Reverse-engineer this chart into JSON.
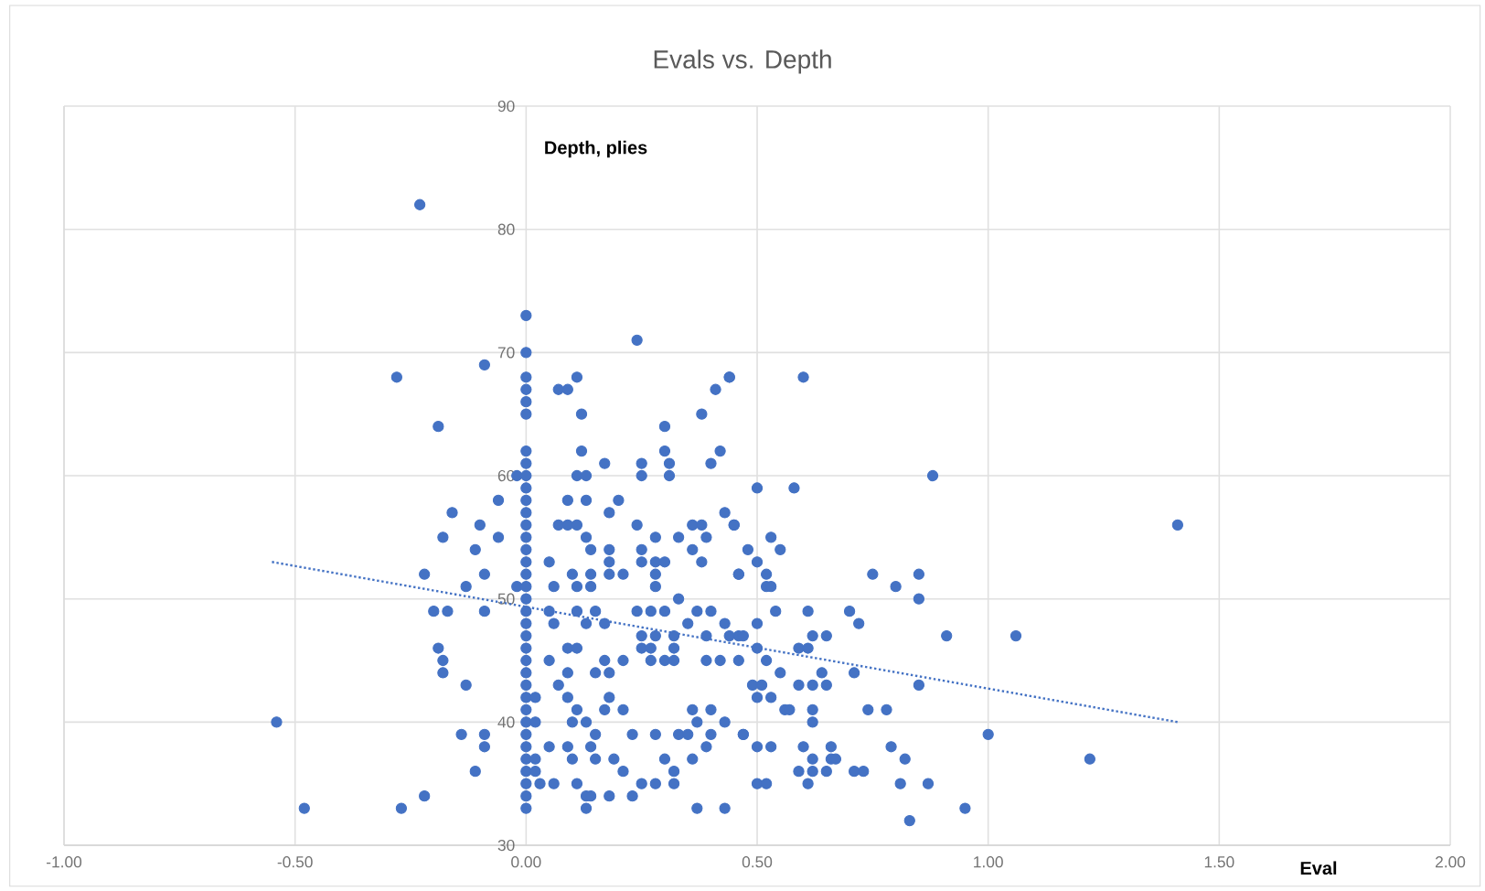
{
  "chart_data": {
    "type": "scatter",
    "title": "Evals vs. Depth",
    "xlabel": "Eval",
    "ylabel": "Depth, plies",
    "xlim": [
      -1,
      2
    ],
    "ylim": [
      30,
      90
    ],
    "xticks": [
      {
        "value": -1,
        "label": "-1.00"
      },
      {
        "value": -0.5,
        "label": "-0.50"
      },
      {
        "value": 0,
        "label": "0.00"
      },
      {
        "value": 0.5,
        "label": "0.50"
      },
      {
        "value": 1,
        "label": "1.00"
      },
      {
        "value": 1.5,
        "label": "1.50"
      },
      {
        "value": 2,
        "label": "2.00"
      }
    ],
    "yticks": [
      30,
      40,
      50,
      60,
      70,
      80,
      90
    ],
    "grid": true,
    "marker": "circle",
    "series": [
      {
        "color": "#4472c4",
        "x": [
          -0.23,
          -0.28,
          -0.09,
          -0.19,
          -0.16,
          -0.06,
          -0.1,
          -0.18,
          -0.06,
          -0.11,
          -0.22,
          -0.09,
          -0.13,
          -0.02,
          -0.2,
          -0.17,
          -0.09,
          -0.19,
          -0.18,
          -0.18,
          -0.13,
          -0.54,
          -0.14,
          -0.09,
          -0.09,
          -0.11,
          -0.22,
          -0.48,
          -0.27,
          -0.02,
          0,
          0,
          0,
          0,
          0,
          0,
          0,
          0,
          0,
          0,
          0,
          0,
          0,
          0,
          0,
          0,
          0,
          0,
          0,
          0,
          0,
          0,
          0,
          0,
          0,
          0,
          0,
          0,
          0,
          0,
          0,
          0,
          0,
          0,
          0,
          0,
          0.24,
          0.07,
          0.09,
          0.11,
          0.12,
          0.3,
          0.38,
          0.44,
          0.41,
          0.12,
          0.11,
          0.13,
          0.17,
          0.25,
          0.25,
          0.3,
          0.31,
          0.31,
          0.42,
          0.4,
          0.09,
          0.13,
          0.2,
          0.18,
          0.07,
          0.09,
          0.11,
          0.13,
          0.14,
          0.24,
          0.28,
          0.33,
          0.36,
          0.38,
          0.39,
          0.36,
          0.43,
          0.45,
          0.05,
          0.18,
          0.18,
          0.21,
          0.18,
          0.25,
          0.25,
          0.28,
          0.3,
          0.28,
          0.28,
          0.46,
          0.38,
          0.1,
          0.14,
          0.11,
          0.14,
          0.06,
          0.05,
          0.06,
          0.11,
          0.15,
          0.13,
          0.17,
          0.24,
          0.27,
          0.3,
          0.33,
          0.35,
          0.37,
          0.4,
          0.43,
          0.25,
          0.28,
          0.32,
          0.39,
          0.46,
          0.25,
          0.27,
          0.32,
          0.27,
          0.3,
          0.32,
          0.39,
          0.42,
          0.05,
          0.09,
          0.11,
          0.09,
          0.07,
          0.15,
          0.17,
          0.18,
          0.21,
          0.02,
          0.09,
          0.11,
          0.18,
          0.21,
          0.17,
          0.36,
          0.4,
          0.43,
          0.02,
          0.1,
          0.13,
          0.15,
          0.23,
          0.28,
          0.33,
          0.35,
          0.37,
          0.4,
          0.47,
          0.05,
          0.09,
          0.14,
          0.1,
          0.15,
          0.19,
          0.21,
          0.3,
          0.32,
          0.36,
          0.39,
          0.02,
          0.02,
          0.03,
          0.06,
          0.11,
          0.13,
          0.14,
          0.18,
          0.23,
          0.25,
          0.28,
          0.32,
          0.13,
          0.37,
          0.43,
          0.44,
          0.6,
          0.5,
          0.58,
          0.88,
          0.45,
          0.53,
          0.55,
          0.48,
          0.46,
          0.5,
          0.52,
          0.52,
          0.53,
          0.75,
          0.8,
          0.85,
          0.85,
          0.54,
          0.61,
          0.7,
          0.72,
          0.5,
          0.44,
          0.47,
          0.62,
          0.65,
          0.91,
          1.06,
          0.5,
          0.52,
          0.46,
          0.59,
          0.61,
          0.55,
          0.64,
          0.71,
          0.85,
          0.49,
          0.51,
          0.5,
          0.53,
          0.59,
          0.62,
          0.65,
          0.56,
          0.57,
          0.62,
          0.62,
          0.74,
          0.78,
          0.47,
          0.5,
          0.53,
          0.6,
          0.66,
          0.79,
          1.0,
          0.62,
          0.66,
          0.67,
          0.82,
          0.59,
          0.62,
          0.71,
          0.73,
          0.65,
          0.5,
          0.52,
          0.61,
          0.81,
          0.87,
          0.83,
          0.95,
          1.41,
          1.22
        ],
        "values": [
          82,
          68,
          69,
          64,
          57,
          58,
          56,
          55,
          55,
          54,
          52,
          52,
          51,
          51,
          49,
          49,
          49,
          46,
          45,
          44,
          43,
          40,
          39,
          39,
          38,
          36,
          34,
          33,
          33,
          60,
          73,
          70,
          68,
          67,
          66,
          65,
          62,
          61,
          60,
          59,
          58,
          57,
          56,
          55,
          54,
          53,
          52,
          51,
          50,
          49,
          48,
          47,
          46,
          45,
          44,
          43,
          42,
          41,
          40,
          39,
          38,
          37,
          36,
          35,
          34,
          33,
          71,
          67,
          67,
          68,
          65,
          64,
          65,
          68,
          67,
          62,
          60,
          60,
          61,
          61,
          60,
          62,
          61,
          60,
          62,
          61,
          58,
          58,
          58,
          57,
          56,
          56,
          56,
          55,
          54,
          56,
          55,
          55,
          56,
          56,
          55,
          54,
          57,
          56,
          53,
          54,
          53,
          52,
          52,
          54,
          53,
          53,
          53,
          52,
          51,
          52,
          53,
          52,
          52,
          51,
          51,
          51,
          49,
          48,
          49,
          49,
          48,
          48,
          49,
          49,
          49,
          50,
          48,
          49,
          49,
          48,
          47,
          47,
          47,
          47,
          47,
          46,
          46,
          46,
          45,
          45,
          45,
          45,
          45,
          45,
          46,
          46,
          44,
          43,
          44,
          45,
          44,
          45,
          42,
          42,
          41,
          42,
          41,
          41,
          41,
          41,
          40,
          40,
          40,
          40,
          39,
          39,
          39,
          39,
          39,
          40,
          39,
          39,
          38,
          38,
          38,
          37,
          37,
          37,
          36,
          37,
          36,
          37,
          38,
          37,
          36,
          35,
          35,
          35,
          34,
          34,
          34,
          34,
          35,
          35,
          35,
          33,
          33,
          33,
          68,
          68,
          59,
          59,
          60,
          56,
          55,
          54,
          54,
          52,
          53,
          52,
          51,
          51,
          52,
          51,
          52,
          50,
          49,
          49,
          49,
          48,
          48,
          47,
          47,
          47,
          47,
          47,
          47,
          46,
          45,
          45,
          46,
          46,
          44,
          44,
          44,
          43,
          43,
          43,
          42,
          42,
          43,
          43,
          43,
          41,
          41,
          41,
          40,
          41,
          41,
          39,
          38,
          38,
          38,
          38,
          38,
          39,
          37,
          37,
          37,
          37,
          36,
          36,
          36,
          36,
          36,
          35,
          35,
          35,
          35,
          35,
          32,
          33,
          56,
          37
        ]
      },
      {
        "type": "line",
        "color": "#4472c4",
        "marker": "none",
        "line_style": "dotted",
        "x": [
          -0.55,
          1.41
        ],
        "values": [
          53,
          40
        ]
      }
    ]
  }
}
